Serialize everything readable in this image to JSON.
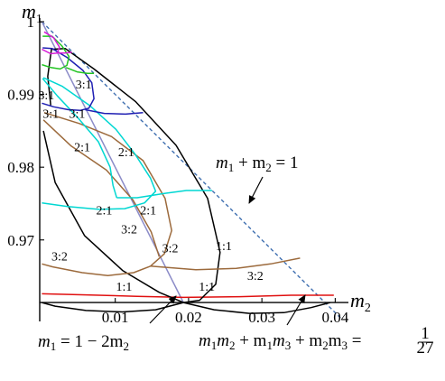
{
  "chart_data": {
    "type": "line",
    "title": "",
    "xlabel": {
      "base": "m",
      "sub": "2"
    },
    "ylabel": {
      "base": "m",
      "sub": "1"
    },
    "xlim": [
      -0.0003,
      0.0418
    ],
    "ylim": [
      0.9588,
      1.0005
    ],
    "x_ticks": [
      {
        "value": 0.01,
        "label": "0.01"
      },
      {
        "value": 0.02,
        "label": "0.02"
      },
      {
        "value": 0.03,
        "label": "0.03"
      },
      {
        "value": 0.04,
        "label": "0.04"
      }
    ],
    "y_ticks": [
      {
        "value": 0.97,
        "label": "0.97"
      },
      {
        "value": 0.98,
        "label": "0.98"
      },
      {
        "value": 0.99,
        "label": "0.99"
      },
      {
        "value": 1.0,
        "label": "1"
      }
    ],
    "colors": {
      "boundary_line": "#3f6fb0",
      "ratio_1_1": "#000000",
      "ratio_3_2": "#9c6a3c",
      "ratio_2_1": "#00d7d2",
      "ratio_3_1": "#1f1fb3",
      "small_green": "#22c422",
      "small_magenta": "#d61fd6",
      "sum_constraint": "#e01010",
      "center_line": "#8c8cc8"
    },
    "series": [
      {
        "key": "boundary",
        "color_key": "boundary_line",
        "dashed": true,
        "points": [
          [
            0,
            1.0
          ],
          [
            0.0407,
            0.9593
          ]
        ]
      },
      {
        "key": "center-line",
        "color_key": "center_line",
        "points": [
          [
            0,
            1.0
          ],
          [
            0.0193,
            0.9614
          ]
        ]
      },
      {
        "key": "red-curve",
        "color_key": "sum_constraint",
        "points": [
          [
            0,
            0.9626
          ],
          [
            0.006,
            0.96245
          ],
          [
            0.013,
            0.96225
          ],
          [
            0.0193,
            0.9621
          ],
          [
            0.027,
            0.9622
          ],
          [
            0.034,
            0.9624
          ],
          [
            0.0398,
            0.9624
          ]
        ]
      },
      {
        "key": "black-outer",
        "color_key": "ratio_1_1",
        "points": [
          [
            0.0012,
            0.9885
          ],
          [
            0.0008,
            0.9925
          ],
          [
            0.0013,
            0.9962
          ],
          [
            0.0032,
            0.9963
          ],
          [
            0.0071,
            0.9935
          ],
          [
            0.0128,
            0.989
          ],
          [
            0.0183,
            0.983
          ],
          [
            0.0226,
            0.9757
          ],
          [
            0.0243,
            0.9683
          ],
          [
            0.0237,
            0.9639
          ],
          [
            0.0215,
            0.9617
          ],
          [
            0.0193,
            0.9614
          ],
          [
            0.016,
            0.9628
          ],
          [
            0.011,
            0.9658
          ],
          [
            0.0058,
            0.9706
          ],
          [
            0.0018,
            0.9779
          ],
          [
            0.0002,
            0.985
          ]
        ]
      },
      {
        "key": "black-bottom",
        "color_key": "ratio_1_1",
        "points": [
          [
            0.0,
            0.9614
          ],
          [
            0.0018,
            0.9609
          ],
          [
            0.006,
            0.9603
          ],
          [
            0.011,
            0.9601
          ],
          [
            0.0155,
            0.9604
          ],
          [
            0.0193,
            0.9614
          ],
          [
            0.0235,
            0.9604
          ],
          [
            0.0283,
            0.9599
          ],
          [
            0.033,
            0.96
          ],
          [
            0.0367,
            0.9607
          ],
          [
            0.0393,
            0.9614
          ]
        ]
      },
      {
        "key": "brown-left",
        "color_key": "ratio_3_2",
        "points": [
          [
            0.0002,
            0.9865
          ],
          [
            0.004,
            0.9829
          ],
          [
            0.0088,
            0.9796
          ],
          [
            0.0124,
            0.9755
          ],
          [
            0.0149,
            0.9711
          ],
          [
            0.016,
            0.9677
          ]
        ]
      },
      {
        "key": "brown-right",
        "color_key": "ratio_3_2",
        "points": [
          [
            0.0003,
            0.9875
          ],
          [
            0.0051,
            0.986
          ],
          [
            0.0095,
            0.9842
          ],
          [
            0.0138,
            0.9809
          ],
          [
            0.0168,
            0.9757
          ],
          [
            0.0177,
            0.9713
          ],
          [
            0.0167,
            0.9681
          ],
          [
            0.0148,
            0.9664
          ],
          [
            0.0125,
            0.9655
          ],
          [
            0.009,
            0.9651
          ],
          [
            0.0055,
            0.9655
          ],
          [
            0.0015,
            0.9663
          ],
          [
            0.0,
            0.9667
          ]
        ]
      },
      {
        "key": "brown-right-curve",
        "color_key": "ratio_3_2",
        "points": [
          [
            0.0148,
            0.9664
          ],
          [
            0.021,
            0.9659
          ],
          [
            0.0265,
            0.9661
          ],
          [
            0.0312,
            0.9667
          ],
          [
            0.0352,
            0.9675
          ]
        ]
      },
      {
        "key": "cyan-main",
        "color_key": "ratio_2_1",
        "points": [
          [
            0.0002,
            0.9923
          ],
          [
            0.0028,
            0.9911
          ],
          [
            0.0065,
            0.9885
          ],
          [
            0.0101,
            0.9852
          ],
          [
            0.0127,
            0.9818
          ],
          [
            0.0148,
            0.9785
          ],
          [
            0.0155,
            0.9767
          ],
          [
            0.014,
            0.9751
          ],
          [
            0.0113,
            0.9743
          ],
          [
            0.0078,
            0.9742
          ],
          [
            0.0035,
            0.9746
          ],
          [
            0.0,
            0.9751
          ]
        ]
      },
      {
        "key": "cyan-left",
        "color_key": "ratio_2_1",
        "points": [
          [
            0.0001,
            0.9922
          ],
          [
            0.0021,
            0.9898
          ],
          [
            0.0049,
            0.9868
          ],
          [
            0.0077,
            0.9835
          ],
          [
            0.0093,
            0.98
          ],
          [
            0.0097,
            0.9775
          ],
          [
            0.0102,
            0.9758
          ]
        ]
      },
      {
        "key": "cyan-right",
        "color_key": "ratio_2_1",
        "points": [
          [
            0.0102,
            0.9758
          ],
          [
            0.013,
            0.9758
          ],
          [
            0.0167,
            0.9764
          ],
          [
            0.0197,
            0.9768
          ],
          [
            0.0232,
            0.9768
          ]
        ]
      },
      {
        "key": "blue",
        "color_key": "ratio_3_1",
        "points": [
          [
            0.0001,
            0.9964
          ],
          [
            0.0014,
            0.9963
          ],
          [
            0.0034,
            0.9951
          ],
          [
            0.0056,
            0.9933
          ],
          [
            0.0068,
            0.9916
          ],
          [
            0.0071,
            0.9894
          ],
          [
            0.0064,
            0.9881
          ],
          [
            0.0052,
            0.9878
          ],
          [
            0.0036,
            0.9879
          ],
          [
            0.0016,
            0.9883
          ],
          [
            0.0,
            0.9888
          ]
        ]
      },
      {
        "key": "blue-right",
        "color_key": "ratio_3_1",
        "points": [
          [
            0.0059,
            0.9879
          ],
          [
            0.0085,
            0.9874
          ],
          [
            0.0114,
            0.9873
          ],
          [
            0.0138,
            0.9875
          ]
        ]
      },
      {
        "key": "green",
        "color_key": "small_green",
        "points": [
          [
            0.0001,
            0.998
          ],
          [
            0.0014,
            0.998
          ],
          [
            0.0027,
            0.9967
          ],
          [
            0.0037,
            0.9952
          ],
          [
            0.0034,
            0.994
          ],
          [
            0.0025,
            0.9935
          ],
          [
            0.0012,
            0.9937
          ],
          [
            0.0,
            0.9941
          ]
        ]
      },
      {
        "key": "green-right",
        "color_key": "small_green",
        "points": [
          [
            0.0033,
            0.9937
          ],
          [
            0.0048,
            0.9931
          ],
          [
            0.0062,
            0.9929
          ],
          [
            0.0071,
            0.9929
          ]
        ]
      },
      {
        "key": "magenta",
        "color_key": "small_magenta",
        "points": [
          [
            0.0003,
            0.9986
          ],
          [
            0.0016,
            0.9978
          ],
          [
            0.0024,
            0.9965
          ],
          [
            0.0021,
            0.9957
          ],
          [
            0.0012,
            0.9956
          ],
          [
            0.0,
            0.9962
          ]
        ]
      },
      {
        "key": "magenta-right",
        "color_key": "small_magenta",
        "points": [
          [
            0.0021,
            0.9957
          ],
          [
            0.0031,
            0.9957
          ],
          [
            0.0041,
            0.9958
          ]
        ]
      }
    ],
    "annotations": [
      {
        "key": "eq-boundary",
        "text_parts": [
          "m",
          "1",
          " + m",
          "2",
          " = 1"
        ]
      },
      {
        "key": "eq-line",
        "text_parts": [
          "m",
          "1",
          " = 1 − 2m",
          "2"
        ]
      },
      {
        "key": "eq-curve",
        "text_parts": [
          "m",
          "1",
          "m",
          "2",
          " + m",
          "1",
          "m",
          "3",
          " + m",
          "2",
          "m",
          "3",
          " = "
        ],
        "fraction": [
          "1",
          "27"
        ]
      }
    ],
    "ratio_labels": [
      {
        "text": "3:1",
        "x": 0.0057,
        "y": 0.9908
      },
      {
        "text": "3:1",
        "x": 0.0006,
        "y": 0.9893
      },
      {
        "text": "3:1",
        "x": 0.0012,
        "y": 0.9868
      },
      {
        "text": "3:1",
        "x": 0.0048,
        "y": 0.9868
      },
      {
        "text": "2:1",
        "x": 0.0055,
        "y": 0.9822
      },
      {
        "text": "2:1",
        "x": 0.0115,
        "y": 0.9815
      },
      {
        "text": "2:1",
        "x": 0.0085,
        "y": 0.9735
      },
      {
        "text": "2:1",
        "x": 0.0145,
        "y": 0.9735
      },
      {
        "text": "3:2",
        "x": 0.0119,
        "y": 0.9709
      },
      {
        "text": "3:2",
        "x": 0.0175,
        "y": 0.9683
      },
      {
        "text": "3:2",
        "x": 0.0024,
        "y": 0.9672
      },
      {
        "text": "3:2",
        "x": 0.0291,
        "y": 0.9645
      },
      {
        "text": "1:1",
        "x": 0.0248,
        "y": 0.9686
      },
      {
        "text": "1:1",
        "x": 0.0112,
        "y": 0.963
      },
      {
        "text": "1:1",
        "x": 0.0225,
        "y": 0.963
      }
    ]
  }
}
